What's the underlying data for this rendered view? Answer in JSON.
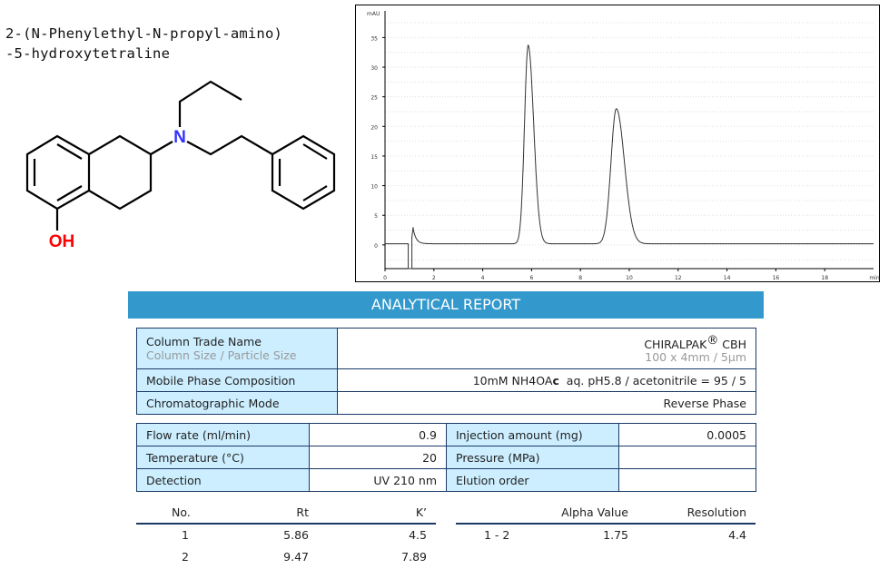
{
  "compound": {
    "name_line1": "2-(N-Phenylethyl-N-propyl-amino)",
    "name_line2": "-5-hydroxytetraline",
    "atom_N": "N",
    "atom_OH": "OH",
    "colors": {
      "N": "#3333ff",
      "OH": "#ff0000"
    }
  },
  "chart_data": {
    "type": "line",
    "title": "",
    "xlabel": "min",
    "ylabel": "mAU",
    "xlim": [
      0,
      20
    ],
    "ylim": [
      -4,
      39.5
    ],
    "x_ticks": [
      0,
      2,
      4,
      6,
      8,
      10,
      12,
      14,
      16,
      18
    ],
    "y_ticks": [
      0,
      5,
      10,
      15,
      20,
      25,
      30,
      35
    ],
    "grid": true,
    "peaks": [
      {
        "rt": 5.86,
        "height": 33.5
      },
      {
        "rt": 9.47,
        "height": 22.8
      }
    ],
    "baseline": 0.2,
    "line_color": "#333333"
  },
  "report": {
    "banner": "ANALYTICAL REPORT",
    "column": {
      "label": "Column Trade Name",
      "sublabel": "Column Size / Particle Size",
      "value": "CHIRALPAK",
      "reg": "®",
      "value_suffix": " CBH",
      "subvalue": "100 x 4mm / 5µm"
    },
    "mobile_phase": {
      "label": "Mobile Phase Composition",
      "value_a": "10mM NH4OA",
      "value_b": "c",
      "value_c": "  aq. pH5.8 / acetonitrile = 95 / 5"
    },
    "mode": {
      "label": "Chromatographic Mode",
      "value": "Reverse Phase"
    },
    "conditions": [
      {
        "label": "Flow rate (ml/min)",
        "value": "0.9",
        "label2": "Injection amount (mg)",
        "value2": "0.0005"
      },
      {
        "label": "Temperature (°C)",
        "value": "20",
        "label2": "Pressure (MPa)",
        "value2": ""
      },
      {
        "label": "Detection",
        "value": "UV 210 nm",
        "label2": "Elution order",
        "value2": ""
      }
    ],
    "results": {
      "headers": {
        "no": "No.",
        "rt": "Rt",
        "k": "K’",
        "alpha": "Alpha Value",
        "resolution": "Resolution"
      },
      "rows": [
        {
          "no": "1",
          "rt": "5.86",
          "k": "4.5"
        },
        {
          "no": "2",
          "rt": "9.47",
          "k": "7.89"
        }
      ],
      "pair": {
        "pair": "1 - 2",
        "alpha": "1.75",
        "resolution": "4.4"
      }
    }
  }
}
